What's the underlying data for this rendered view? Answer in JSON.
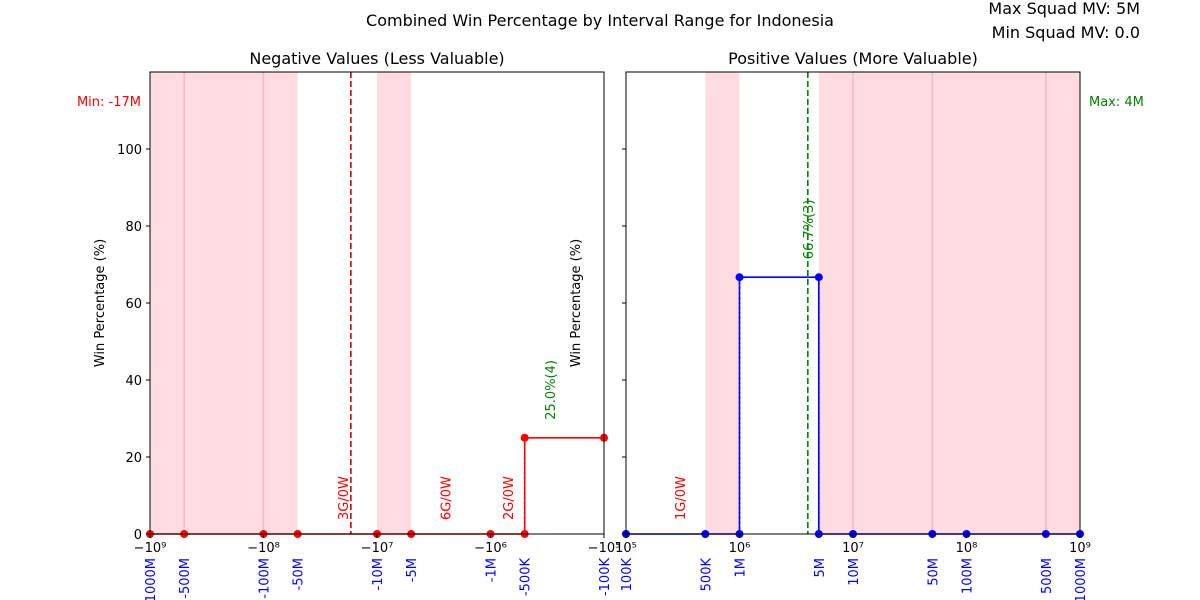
{
  "chart_data": {
    "type": "line",
    "title": "Combined Win Percentage by Interval Range for Indonesia",
    "info": [
      "Max Squad MV: 5M",
      "Min Squad MV: 0.0"
    ],
    "colors": {
      "negative_series": "#ff0000",
      "positive_series": "#0000ff",
      "shade": "#ffc0cb",
      "median_neg": "#cc0000",
      "median_pos": "#008000",
      "green_label": "#008000"
    },
    "panels": [
      {
        "title": "Negative Values (Less Valuable)",
        "ylabel": "Win Percentage (%)",
        "xscale": "symlog",
        "xlim": [
          -1000000000,
          -100000
        ],
        "ylim": [
          0,
          100
        ],
        "yticks": [
          "0",
          "20",
          "40",
          "60",
          "80",
          "100"
        ],
        "xticks": [
          {
            "v": -1000000000,
            "label": "−10⁹"
          },
          {
            "v": -100000000,
            "label": "−10⁸"
          },
          {
            "v": -10000000,
            "label": "−10⁷"
          },
          {
            "v": -1000000,
            "label": "−10⁶"
          },
          {
            "v": -100000,
            "label": "−10⁵"
          }
        ],
        "boundaries": [
          {
            "v": -1000000000,
            "label": "-1000M"
          },
          {
            "v": -500000000,
            "label": "-500M"
          },
          {
            "v": -100000000,
            "label": "-100M"
          },
          {
            "v": -50000000,
            "label": "-50M"
          },
          {
            "v": -10000000,
            "label": "-10M"
          },
          {
            "v": -5000000,
            "label": "-5M"
          },
          {
            "v": -1000000,
            "label": "-1M"
          },
          {
            "v": -500000,
            "label": "-500K"
          },
          {
            "v": -100000,
            "label": "-100K"
          }
        ],
        "shaded": [
          [
            -1000000000,
            -50000000
          ],
          [
            -10000000,
            -5000000
          ]
        ],
        "vlines": [
          -100000000,
          -500000000
        ],
        "points": [
          {
            "x": -1000000000,
            "y": 0
          },
          {
            "x": -500000000,
            "y": 0
          },
          {
            "x": -100000000,
            "y": 0
          },
          {
            "x": -50000000,
            "y": 0
          },
          {
            "x": -10000000,
            "y": 0
          },
          {
            "x": -5000000,
            "y": 0
          },
          {
            "x": -1000000,
            "y": 0
          },
          {
            "x": -500000,
            "y": 0
          },
          {
            "x": -500000,
            "y": 25
          },
          {
            "x": -100000,
            "y": 25
          }
        ],
        "dotted": [
          {
            "x": -500000,
            "y": 25
          }
        ],
        "median": {
          "x": -17000000,
          "label": "Min: -17M"
        },
        "interval_labels": [
          {
            "x": -20000000,
            "text": "3G/0W"
          },
          {
            "x": -2500000,
            "text": "6G/0W"
          },
          {
            "x": -700000,
            "text": "2G/0W"
          }
        ],
        "pct_labels": [
          {
            "x": -300000,
            "y": 25,
            "text": "25.0%(4)"
          }
        ]
      },
      {
        "title": "Positive Values (More Valuable)",
        "ylabel": "Win Percentage (%)",
        "xscale": "log",
        "xlim": [
          100000,
          1000000000
        ],
        "ylim": [
          0,
          100
        ],
        "yticks": [],
        "xticks": [
          {
            "v": 100000,
            "label": "10⁵"
          },
          {
            "v": 1000000,
            "label": "10⁶"
          },
          {
            "v": 10000000,
            "label": "10⁷"
          },
          {
            "v": 100000000,
            "label": "10⁸"
          },
          {
            "v": 1000000000,
            "label": "10⁹"
          }
        ],
        "boundaries": [
          {
            "v": 100000,
            "label": "100K"
          },
          {
            "v": 500000,
            "label": "500K"
          },
          {
            "v": 1000000,
            "label": "1M"
          },
          {
            "v": 5000000,
            "label": "5M"
          },
          {
            "v": 10000000,
            "label": "10M"
          },
          {
            "v": 50000000,
            "label": "50M"
          },
          {
            "v": 100000000,
            "label": "100M"
          },
          {
            "v": 500000000,
            "label": "500M"
          },
          {
            "v": 1000000000,
            "label": "1000M"
          }
        ],
        "shaded": [
          [
            500000,
            1000000
          ],
          [
            5000000,
            1000000000
          ]
        ],
        "vlines": [
          10000000,
          50000000,
          500000000
        ],
        "points": [
          {
            "x": 100000,
            "y": 0
          },
          {
            "x": 500000,
            "y": 0
          },
          {
            "x": 1000000,
            "y": 0
          },
          {
            "x": 1000000,
            "y": 66.7
          },
          {
            "x": 5000000,
            "y": 66.7
          },
          {
            "x": 5000000,
            "y": 0
          },
          {
            "x": 10000000,
            "y": 0
          },
          {
            "x": 50000000,
            "y": 0
          },
          {
            "x": 100000000,
            "y": 0
          },
          {
            "x": 500000000,
            "y": 0
          },
          {
            "x": 1000000000,
            "y": 0
          }
        ],
        "dotted": [
          {
            "x": 1000000,
            "y": 66.7
          },
          {
            "x": 5000000,
            "y": 66.7
          }
        ],
        "median": {
          "x": 4000000,
          "label": "Max: 4M"
        },
        "interval_labels": [
          {
            "x": 300000,
            "text": "1G/0W"
          }
        ],
        "pct_labels": [
          {
            "x": 4000000,
            "y": 66.7,
            "text": "66.7%(3)"
          }
        ]
      }
    ]
  }
}
